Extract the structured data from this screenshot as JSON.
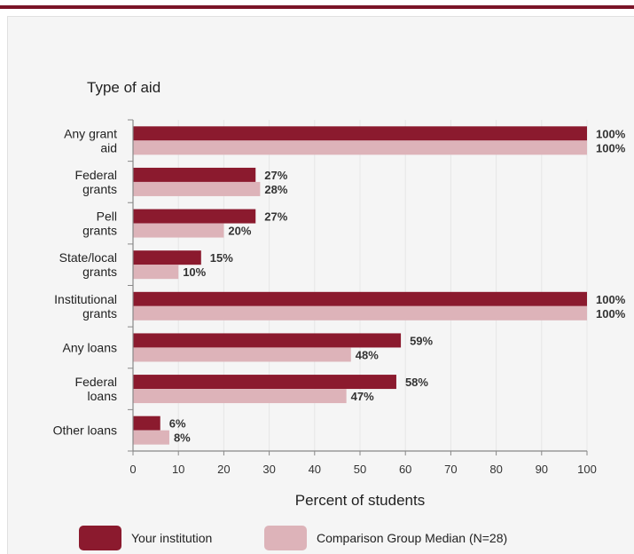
{
  "chart_data": {
    "type": "bar",
    "orientation": "horizontal",
    "title": "Type of aid",
    "xlabel": "Percent of students",
    "ylabel": "",
    "xlim": [
      0,
      100
    ],
    "x_ticks": [
      0,
      10,
      20,
      30,
      40,
      50,
      60,
      70,
      80,
      90,
      100
    ],
    "grid": true,
    "legend_position": "bottom",
    "categories": [
      [
        "Any grant",
        "aid"
      ],
      [
        "Federal",
        "grants"
      ],
      [
        "Pell",
        "grants"
      ],
      [
        "State/local",
        "grants"
      ],
      [
        "Institutional",
        "grants"
      ],
      [
        "Any loans"
      ],
      [
        "Federal",
        "loans"
      ],
      [
        "Other loans"
      ]
    ],
    "series": [
      {
        "name": "Your institution",
        "color": "#8b1a2e",
        "values": [
          100,
          27,
          27,
          15,
          100,
          59,
          58,
          6
        ]
      },
      {
        "name": "Comparison Group Median (N=28)",
        "color": "#ddb3b9",
        "values": [
          100,
          28,
          20,
          10,
          100,
          48,
          47,
          8
        ]
      }
    ]
  },
  "theme": {
    "accent_bar": "#7a1428",
    "panel_background": "#f5f5f5",
    "gridline": "#e6e6e6"
  }
}
